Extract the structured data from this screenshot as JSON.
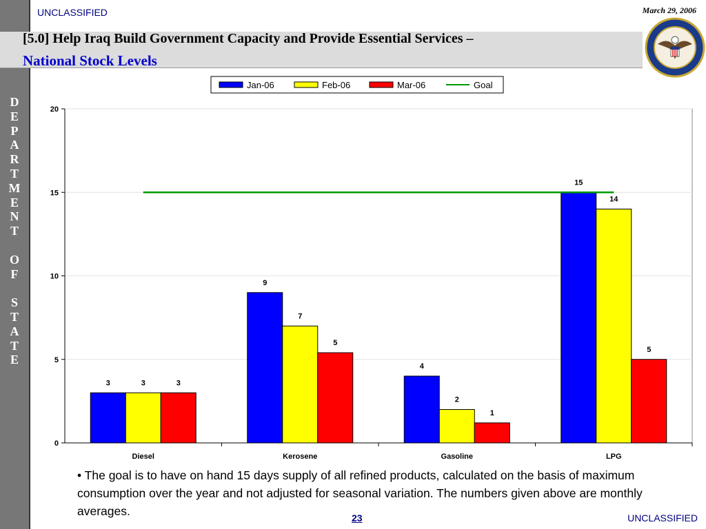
{
  "header": {
    "classification_top": "UNCLASSIFIED",
    "date": "March 29, 2006",
    "title_line1": "[5.0] Help Iraq Build Government Capacity and Provide Essential Services –",
    "title_line2": "National Stock Levels"
  },
  "sidebar": {
    "letters": [
      "D",
      "E",
      "P",
      "A",
      "R",
      "T",
      "M",
      "E",
      "N",
      "T",
      " ",
      "O",
      "F",
      " ",
      "S",
      "T",
      "A",
      "T",
      "E"
    ]
  },
  "footer": {
    "note": "• The goal is to have on hand 15 days supply of all refined products, calculated on the basis of maximum consumption over the year and not adjusted for seasonal variation.  The numbers given above are monthly averages.",
    "page_number": "23",
    "classification_bottom": "UNCLASSIFIED"
  },
  "seal": {
    "icon": "department-of-state-seal-icon",
    "text": "DEPARTMENT OF STATE • UNITED STATES OF AMERICA"
  },
  "chart_data": {
    "type": "bar",
    "categories": [
      "Diesel",
      "Kerosene",
      "Gasoline",
      "LPG"
    ],
    "series": [
      {
        "name": "Jan-06",
        "values": [
          3,
          9,
          4,
          15
        ],
        "color": "#0000ff"
      },
      {
        "name": "Feb-06",
        "values": [
          3,
          7,
          2,
          14
        ],
        "color": "#ffff00"
      },
      {
        "name": "Mar-06",
        "values": [
          3,
          5.4,
          1.2,
          5
        ],
        "color": "#ff0000"
      }
    ],
    "data_labels": [
      [
        "3",
        "9",
        "4",
        "15"
      ],
      [
        "3",
        "7",
        "2",
        "14"
      ],
      [
        "3",
        "5",
        "1",
        "5"
      ]
    ],
    "goal": {
      "name": "Goal",
      "value": 15,
      "color": "#009900"
    },
    "yticks": [
      "0",
      "5",
      "10",
      "15",
      "20"
    ],
    "ylim": [
      0,
      20
    ],
    "grid": true,
    "legend_position": "top"
  }
}
